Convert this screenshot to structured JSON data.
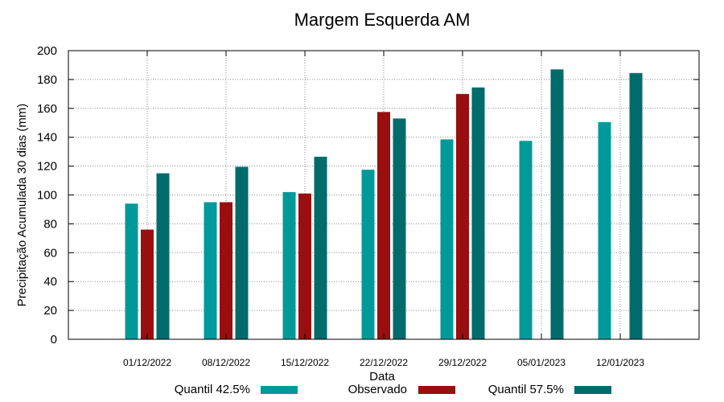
{
  "chart_data": {
    "type": "bar",
    "title": "Margem Esquerda AM",
    "xlabel": "Data",
    "ylabel": "Precipitação Acumulada 30 dias (mm)",
    "ylim": [
      0,
      200
    ],
    "yticks": [
      0,
      20,
      40,
      60,
      80,
      100,
      120,
      140,
      160,
      180,
      200
    ],
    "grid": true,
    "legend_position": "bottom",
    "categories": [
      "01/12/2022",
      "08/12/2022",
      "15/12/2022",
      "22/12/2022",
      "29/12/2022",
      "05/01/2023",
      "12/01/2023"
    ],
    "series": [
      {
        "name": "Quantil 42.5%",
        "color": "#009999",
        "values": [
          94,
          95,
          102,
          117.5,
          138.5,
          137.5,
          150.5
        ]
      },
      {
        "name": "Observado",
        "color": "#990f0f",
        "values": [
          76,
          95,
          101,
          157.5,
          170,
          null,
          null
        ]
      },
      {
        "name": "Quantil 57.5%",
        "color": "#006b6b",
        "values": [
          115,
          119.5,
          126.5,
          153,
          174.5,
          187,
          184.5
        ]
      }
    ]
  }
}
